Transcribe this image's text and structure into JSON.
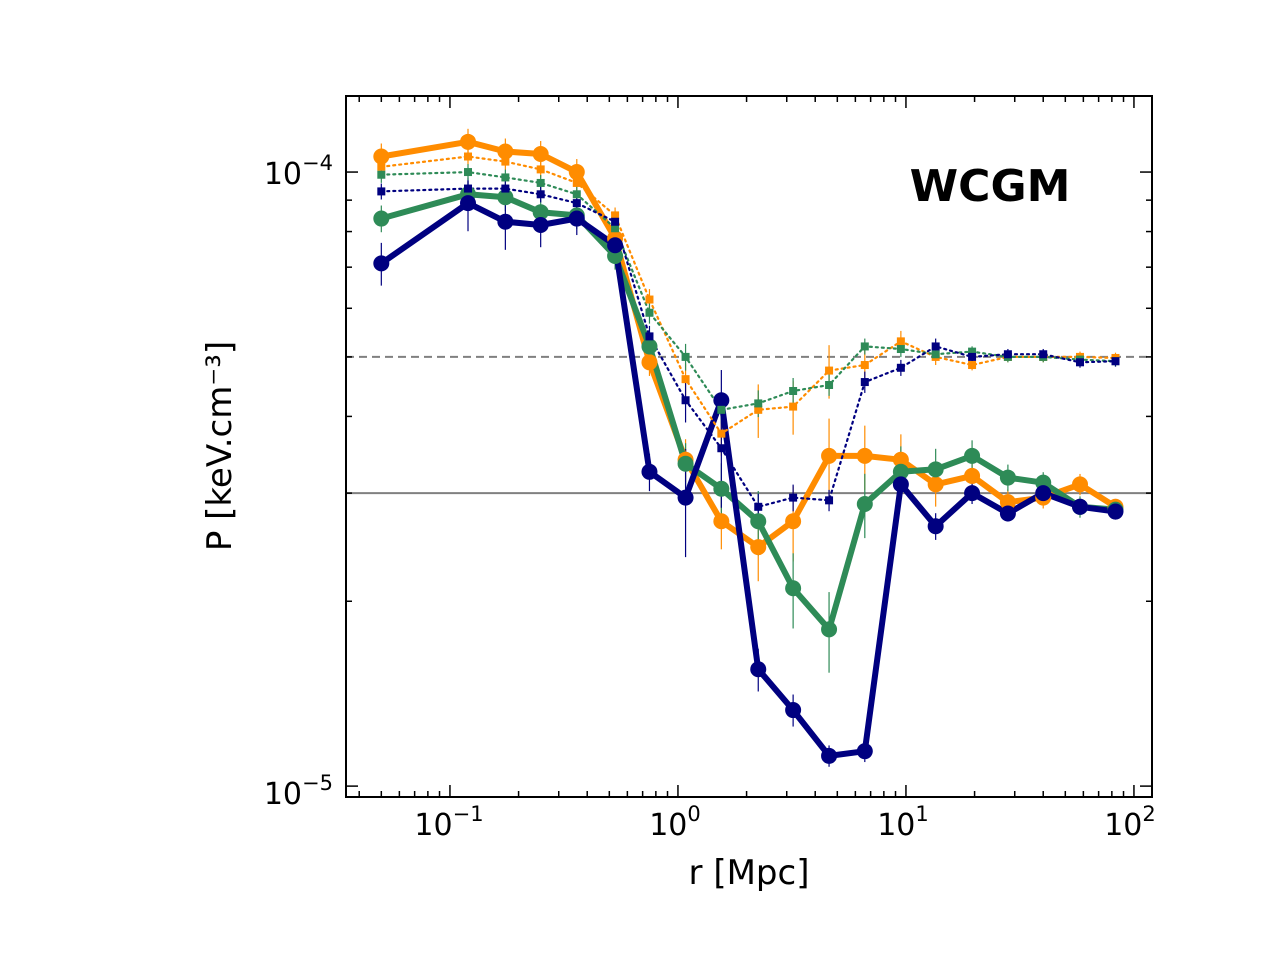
{
  "chart_data": {
    "type": "line",
    "title": "",
    "xlabel": "r [Mpc]",
    "ylabel": "P [keV.cm⁻³]",
    "xscale": "log",
    "yscale": "log",
    "xlim": [
      0.035,
      120
    ],
    "ylim": [
      9.6e-06,
      0.000133
    ],
    "annotation": {
      "text": "WCGM",
      "color": "#800080"
    },
    "x_ticks": [
      {
        "base": "10",
        "exp": "−1"
      },
      {
        "base": "10",
        "exp": "0"
      },
      {
        "base": "10",
        "exp": "1"
      },
      {
        "base": "10",
        "exp": "2"
      }
    ],
    "y_ticks": [
      {
        "base": "10",
        "exp": "−5"
      },
      {
        "base": "10",
        "exp": "−4"
      }
    ],
    "hlines": [
      {
        "y": 5e-05,
        "style": "dashed",
        "color": "#808080"
      },
      {
        "y": 3e-05,
        "style": "solid",
        "color": "#808080"
      }
    ],
    "colors": {
      "orange": "#ff8c00",
      "green": "#2e8b57",
      "navy": "#000080"
    },
    "x": [
      0.05,
      0.12,
      0.175,
      0.25,
      0.36,
      0.53,
      0.75,
      1.08,
      1.55,
      2.25,
      3.2,
      4.6,
      6.6,
      9.5,
      13.5,
      19.5,
      28,
      40,
      58,
      83
    ],
    "series": [
      {
        "name": "orange-thick",
        "color": "#ff8c00",
        "style": "solid",
        "width": 6,
        "marker": "circle",
        "values": [
          0.000106,
          0.000112,
          0.000108,
          0.000107,
          0.0001,
          7.8e-05,
          4.9e-05,
          3.4e-05,
          2.7e-05,
          2.45e-05,
          2.7e-05,
          3.45e-05,
          3.45e-05,
          3.4e-05,
          3.1e-05,
          3.2e-05,
          2.9e-05,
          2.95e-05,
          3.1e-05,
          2.85e-05
        ],
        "errors": [
          0.05,
          0.05,
          0.05,
          0.05,
          0.05,
          0.05,
          0.05,
          0.08,
          0.1,
          0.12,
          0.14,
          0.15,
          0.12,
          0.1,
          0.08,
          0.06,
          0.05,
          0.04,
          0.04,
          0.03
        ]
      },
      {
        "name": "green-thick",
        "color": "#2e8b57",
        "style": "solid",
        "width": 6,
        "marker": "circle",
        "values": [
          8.4e-05,
          9.2e-05,
          9.1e-05,
          8.6e-05,
          8.5e-05,
          7.3e-05,
          5.2e-05,
          3.35e-05,
          3.05e-05,
          2.7e-05,
          2.1e-05,
          1.8e-05,
          2.88e-05,
          3.25e-05,
          3.28e-05,
          3.45e-05,
          3.18e-05,
          3.12e-05,
          2.85e-05,
          2.82e-05
        ],
        "errors": [
          0.05,
          0.05,
          0.05,
          0.05,
          0.05,
          0.05,
          0.06,
          0.08,
          0.1,
          0.12,
          0.14,
          0.15,
          0.12,
          0.1,
          0.08,
          0.06,
          0.05,
          0.04,
          0.04,
          0.03
        ]
      },
      {
        "name": "navy-thick",
        "color": "#000080",
        "style": "solid",
        "width": 6,
        "marker": "circle",
        "values": [
          7.1e-05,
          8.9e-05,
          8.3e-05,
          8.2e-05,
          8.4e-05,
          7.6e-05,
          3.25e-05,
          2.95e-05,
          4.25e-05,
          1.55e-05,
          1.33e-05,
          1.12e-05,
          1.14e-05,
          3.1e-05,
          2.65e-05,
          3e-05,
          2.78e-05,
          3e-05,
          2.85e-05,
          2.8e-05
        ],
        "errors": [
          0.08,
          0.1,
          0.1,
          0.08,
          0.06,
          0.05,
          0.07,
          0.2,
          0.12,
          0.08,
          0.06,
          0.04,
          0.04,
          0.06,
          0.05,
          0.04,
          0.03,
          0.03,
          0.03,
          0.03
        ]
      },
      {
        "name": "orange-dotted",
        "color": "#ff8c00",
        "style": "dotted",
        "width": 2.2,
        "marker": "square",
        "values": [
          0.000102,
          0.000106,
          0.000104,
          0.000101,
          9.6e-05,
          8.5e-05,
          6.2e-05,
          4.6e-05,
          3.75e-05,
          4.1e-05,
          4.15e-05,
          4.75e-05,
          4.85e-05,
          5.3e-05,
          5e-05,
          4.85e-05,
          5e-05,
          5e-05,
          5e-05,
          4.98e-05
        ],
        "errors": [
          0.03,
          0.03,
          0.03,
          0.03,
          0.03,
          0.03,
          0.04,
          0.06,
          0.08,
          0.1,
          0.1,
          0.1,
          0.06,
          0.04,
          0.03,
          0.02,
          0.02,
          0.02,
          0.02,
          0.02
        ]
      },
      {
        "name": "green-dotted",
        "color": "#2e8b57",
        "style": "dotted",
        "width": 2.2,
        "marker": "square",
        "values": [
          9.9e-05,
          0.0001,
          9.8e-05,
          9.6e-05,
          9.2e-05,
          8.1e-05,
          5.9e-05,
          5e-05,
          4.1e-05,
          4.2e-05,
          4.4e-05,
          4.5e-05,
          5.2e-05,
          5.15e-05,
          5.05e-05,
          5.1e-05,
          5e-05,
          5e-05,
          4.95e-05,
          4.92e-05
        ],
        "errors": [
          0.03,
          0.03,
          0.03,
          0.03,
          0.03,
          0.03,
          0.04,
          0.05,
          0.05,
          0.05,
          0.05,
          0.04,
          0.03,
          0.03,
          0.02,
          0.02,
          0.02,
          0.02,
          0.02,
          0.02
        ]
      },
      {
        "name": "navy-dotted",
        "color": "#000080",
        "style": "dotted",
        "width": 2.2,
        "marker": "square",
        "values": [
          9.3e-05,
          9.4e-05,
          9.4e-05,
          9.2e-05,
          8.9e-05,
          8.3e-05,
          5.4e-05,
          4.25e-05,
          3.55e-05,
          2.85e-05,
          2.95e-05,
          2.92e-05,
          4.55e-05,
          4.8e-05,
          5.2e-05,
          5e-05,
          5.05e-05,
          5.05e-05,
          4.9e-05,
          4.92e-05
        ],
        "errors": [
          0.03,
          0.03,
          0.03,
          0.03,
          0.03,
          0.03,
          0.04,
          0.08,
          0.2,
          0.05,
          0.05,
          0.04,
          0.04,
          0.03,
          0.03,
          0.02,
          0.02,
          0.02,
          0.02,
          0.02
        ]
      }
    ]
  }
}
